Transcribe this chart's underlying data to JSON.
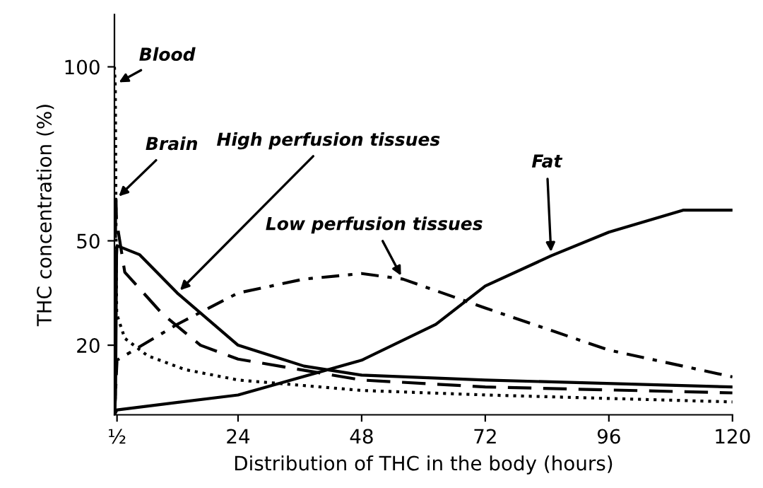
{
  "chart_data": {
    "type": "line",
    "xlabel": "Distribution of THC in the body (hours)",
    "ylabel": "THC concentration (%)",
    "xlim": [
      0,
      120
    ],
    "xticks": [
      {
        "value": 0.5,
        "label": "½"
      },
      24,
      48,
      72,
      96,
      120
    ],
    "ylim": [
      0,
      115
    ],
    "yticks": [
      20,
      50,
      100
    ],
    "grid": false,
    "legend": false,
    "series": [
      {
        "color": "#000000",
        "line_style": "dotted",
        "x": [
          0,
          0.17,
          0.28,
          0.37,
          0.44,
          2,
          6.4,
          13.7,
          24,
          48,
          72,
          120
        ],
        "values": [
          100,
          94,
          62,
          37,
          29,
          22,
          17,
          13,
          10,
          7,
          5.7,
          3.7
        ]
      },
      {
        "color": "#000000",
        "line_style": "dashed",
        "x": [
          0,
          0.11,
          0.17,
          0.22,
          0.3,
          0.39,
          2,
          9.3,
          16.7,
          24,
          48,
          72,
          120
        ],
        "values": [
          0,
          5.7,
          24,
          56,
          62,
          56,
          41,
          29,
          20,
          16,
          10,
          8,
          6.3
        ]
      },
      {
        "color": "#000000",
        "line_style": "solid",
        "x": [
          0,
          0.22,
          0.33,
          0.41,
          0.5,
          4.9,
          12.2,
          24,
          36.8,
          48,
          72,
          120
        ],
        "values": [
          0,
          5.7,
          29,
          46,
          48.6,
          46,
          35,
          20,
          14,
          11.4,
          10,
          8
        ]
      },
      {
        "color": "#000000",
        "line_style": "dashdot",
        "x": [
          0,
          0.28,
          0.5,
          12.2,
          24,
          36.8,
          48,
          56,
          72,
          96,
          120
        ],
        "values": [
          0,
          8.6,
          15.7,
          26,
          35,
          39,
          40.6,
          39,
          30.7,
          18.6,
          10.9
        ]
      },
      {
        "color": "#000000",
        "line_style": "solid",
        "x": [
          0,
          0.5,
          24,
          48,
          62.4,
          72,
          84.8,
          96,
          110.4,
          120
        ],
        "values": [
          0,
          1.4,
          5.7,
          15.7,
          26,
          37,
          45.7,
          52.5,
          58.8,
          58.8
        ]
      }
    ],
    "annotations": [
      {
        "text": "Blood",
        "x": 0.19,
        "y": 95
      },
      {
        "text": "Brain",
        "x": 0.3,
        "y": 62
      },
      {
        "text": "High perfusion tissues",
        "x": 12.2,
        "y": 35
      },
      {
        "text": "Low perfusion tissues",
        "x": 56,
        "y": 39
      },
      {
        "text": "Fat",
        "x": 84.8,
        "y": 45.7
      }
    ]
  }
}
